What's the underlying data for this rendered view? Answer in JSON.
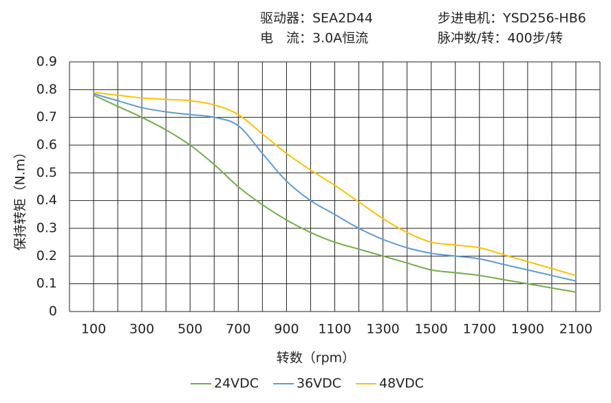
{
  "chart_data": {
    "type": "line",
    "info": [
      "驱动器：SEA2D44",
      "电　流：3.0A恒流",
      "步进电机：YSD256-HB6",
      "脉冲数/转：400步/转"
    ],
    "x_label": "转数（rpm）",
    "y_label": "保持转矩（N.m）",
    "x": [
      100,
      200,
      300,
      400,
      500,
      600,
      700,
      800,
      900,
      1000,
      1100,
      1200,
      1300,
      1400,
      1500,
      1600,
      1700,
      1800,
      1900,
      2000,
      2100
    ],
    "series": [
      {
        "name": "24VDC",
        "color": "#70ad47",
        "values": [
          0.78,
          0.74,
          0.7,
          0.655,
          0.6,
          0.53,
          0.45,
          0.385,
          0.33,
          0.285,
          0.25,
          0.225,
          0.2,
          0.175,
          0.15,
          0.14,
          0.13,
          0.115,
          0.1,
          0.085,
          0.07
        ]
      },
      {
        "name": "36VDC",
        "color": "#5b9bd5",
        "values": [
          0.785,
          0.76,
          0.735,
          0.72,
          0.71,
          0.7,
          0.67,
          0.57,
          0.47,
          0.4,
          0.35,
          0.3,
          0.26,
          0.23,
          0.21,
          0.2,
          0.19,
          0.17,
          0.15,
          0.13,
          0.11
        ]
      },
      {
        "name": "48VDC",
        "color": "#ffc000",
        "values": [
          0.79,
          0.78,
          0.77,
          0.765,
          0.76,
          0.745,
          0.71,
          0.64,
          0.57,
          0.51,
          0.455,
          0.395,
          0.335,
          0.285,
          0.25,
          0.24,
          0.23,
          0.205,
          0.18,
          0.155,
          0.13
        ]
      }
    ],
    "xlim": [
      0,
      2200
    ],
    "xticks": [
      100,
      300,
      500,
      700,
      900,
      1100,
      1300,
      1500,
      1700,
      1900,
      2100
    ],
    "xgrid": [
      0,
      200,
      400,
      600,
      800,
      1000,
      1200,
      1400,
      1600,
      1800,
      2000,
      2200,
      100,
      300,
      500,
      700,
      900,
      1100,
      1300,
      1500,
      1700,
      1900,
      2100
    ],
    "ylim": [
      0,
      0.9
    ],
    "yticks": [
      0,
      0.1,
      0.2,
      0.3,
      0.4,
      0.5,
      0.6,
      0.7,
      0.8,
      0.9
    ],
    "grid": true,
    "legend": "bottom"
  }
}
